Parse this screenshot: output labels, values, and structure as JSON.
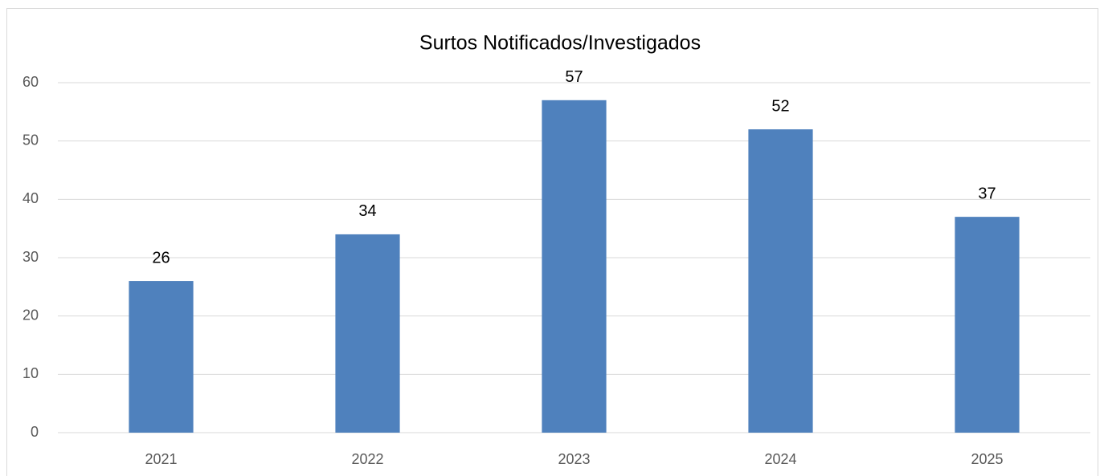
{
  "chart_data": {
    "type": "bar",
    "title": "Surtos Notificados/Investigados",
    "categories": [
      "2021",
      "2022",
      "2023",
      "2024",
      "2025"
    ],
    "values": [
      26,
      34,
      57,
      52,
      37
    ],
    "color": "#4f81bd",
    "ylim": [
      0,
      60
    ],
    "yticks": [
      0,
      10,
      20,
      30,
      40,
      50,
      60
    ],
    "grid": true
  }
}
